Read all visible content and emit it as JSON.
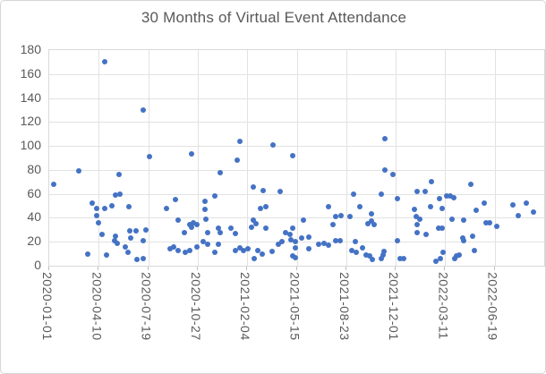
{
  "chart": {
    "title": "30 Months of Virtual Event Attendance",
    "colors": {
      "point": "#4472c4",
      "title_text": "#595959",
      "axis_text": "#595959",
      "gridline": "#e2e2e2",
      "plot_border": "#d9d9d9",
      "chart_border": "#d5d5d5",
      "background": "#ffffff"
    },
    "y_axis": {
      "ticks": [
        0,
        20,
        40,
        60,
        80,
        100,
        120,
        140,
        160,
        180
      ]
    },
    "x_axis": {
      "tick_labels": [
        "2020-01-01",
        "2020-04-10",
        "2020-07-19",
        "2020-10-27",
        "2021-02-04",
        "2021-05-15",
        "2021-08-23",
        "2021-12-01",
        "2022-03-11",
        "2022-06-19"
      ],
      "tick_interval_days": 100
    }
  },
  "chart_data": {
    "type": "scatter",
    "title": "30 Months of Virtual Event Attendance",
    "xlabel": "",
    "ylabel": "",
    "xlim": [
      "2020-01-01",
      "2022-09-27"
    ],
    "ylim": [
      0,
      180
    ],
    "grid": true,
    "legend": "none",
    "marker_color": "#4472c4",
    "points": [
      [
        "2020-01-10",
        68
      ],
      [
        "2020-03-01",
        79
      ],
      [
        "2020-03-18",
        10
      ],
      [
        "2020-03-28",
        52
      ],
      [
        "2020-04-05",
        42
      ],
      [
        "2020-04-06",
        48
      ],
      [
        "2020-04-10",
        36
      ],
      [
        "2020-04-17",
        26
      ],
      [
        "2020-04-22",
        48
      ],
      [
        "2020-04-23",
        170
      ],
      [
        "2020-04-25",
        9
      ],
      [
        "2020-05-07",
        50
      ],
      [
        "2020-05-12",
        21
      ],
      [
        "2020-05-14",
        59
      ],
      [
        "2020-05-14",
        25
      ],
      [
        "2020-05-18",
        19
      ],
      [
        "2020-05-21",
        76
      ],
      [
        "2020-05-22",
        60
      ],
      [
        "2020-06-02",
        16
      ],
      [
        "2020-06-09",
        11
      ],
      [
        "2020-06-10",
        49
      ],
      [
        "2020-06-12",
        29
      ],
      [
        "2020-06-13",
        23
      ],
      [
        "2020-06-24",
        29
      ],
      [
        "2020-06-27",
        5
      ],
      [
        "2020-07-08",
        130
      ],
      [
        "2020-07-08",
        6
      ],
      [
        "2020-07-09",
        21
      ],
      [
        "2020-07-15",
        30
      ],
      [
        "2020-07-22",
        91
      ],
      [
        "2020-08-25",
        48
      ],
      [
        "2020-09-02",
        14
      ],
      [
        "2020-09-09",
        16
      ],
      [
        "2020-09-12",
        55
      ],
      [
        "2020-09-17",
        38
      ],
      [
        "2020-09-17",
        13
      ],
      [
        "2020-09-30",
        28
      ],
      [
        "2020-10-02",
        11
      ],
      [
        "2020-10-11",
        34
      ],
      [
        "2020-10-11",
        13
      ],
      [
        "2020-10-14",
        93
      ],
      [
        "2020-10-14",
        32
      ],
      [
        "2020-10-18",
        36
      ],
      [
        "2020-10-25",
        16
      ],
      [
        "2020-10-26",
        34
      ],
      [
        "2020-11-07",
        20
      ],
      [
        "2020-11-10",
        54
      ],
      [
        "2020-11-10",
        47
      ],
      [
        "2020-11-12",
        39
      ],
      [
        "2020-11-16",
        28
      ],
      [
        "2020-11-16",
        18
      ],
      [
        "2020-12-01",
        58
      ],
      [
        "2020-12-01",
        11
      ],
      [
        "2020-12-07",
        18
      ],
      [
        "2020-12-08",
        31
      ],
      [
        "2020-12-11",
        28
      ],
      [
        "2020-12-12",
        78
      ],
      [
        "2021-01-02",
        31
      ],
      [
        "2021-01-11",
        27
      ],
      [
        "2021-01-11",
        13
      ],
      [
        "2021-01-14",
        88
      ],
      [
        "2021-01-20",
        15
      ],
      [
        "2021-01-21",
        104
      ],
      [
        "2021-01-28",
        13
      ],
      [
        "2021-02-06",
        14
      ],
      [
        "2021-02-13",
        32
      ],
      [
        "2021-02-17",
        66
      ],
      [
        "2021-02-17",
        38
      ],
      [
        "2021-02-18",
        6
      ],
      [
        "2021-02-22",
        35
      ],
      [
        "2021-02-26",
        13
      ],
      [
        "2021-03-03",
        48
      ],
      [
        "2021-03-07",
        10
      ],
      [
        "2021-03-09",
        63
      ],
      [
        "2021-03-13",
        49
      ],
      [
        "2021-03-13",
        31
      ],
      [
        "2021-03-27",
        12
      ],
      [
        "2021-03-28",
        101
      ],
      [
        "2021-04-08",
        18
      ],
      [
        "2021-04-11",
        62
      ],
      [
        "2021-04-15",
        20
      ],
      [
        "2021-04-22",
        28
      ],
      [
        "2021-05-01",
        26
      ],
      [
        "2021-05-04",
        22
      ],
      [
        "2021-05-07",
        92
      ],
      [
        "2021-05-07",
        31
      ],
      [
        "2021-05-07",
        8
      ],
      [
        "2021-05-13",
        20
      ],
      [
        "2021-05-13",
        15
      ],
      [
        "2021-05-13",
        7
      ],
      [
        "2021-05-25",
        23
      ],
      [
        "2021-05-28",
        38
      ],
      [
        "2021-06-09",
        24
      ],
      [
        "2021-06-09",
        14
      ],
      [
        "2021-06-29",
        18
      ],
      [
        "2021-07-09",
        19
      ],
      [
        "2021-07-19",
        49
      ],
      [
        "2021-07-19",
        17
      ],
      [
        "2021-07-27",
        34
      ],
      [
        "2021-08-01",
        21
      ],
      [
        "2021-08-02",
        41
      ],
      [
        "2021-08-10",
        21
      ],
      [
        "2021-08-12",
        42
      ],
      [
        "2021-08-30",
        41
      ],
      [
        "2021-09-04",
        13
      ],
      [
        "2021-09-07",
        60
      ],
      [
        "2021-09-10",
        20
      ],
      [
        "2021-09-13",
        11
      ],
      [
        "2021-09-19",
        49
      ],
      [
        "2021-09-25",
        15
      ],
      [
        "2021-10-02",
        9
      ],
      [
        "2021-10-06",
        35
      ],
      [
        "2021-10-10",
        8
      ],
      [
        "2021-10-13",
        43
      ],
      [
        "2021-10-13",
        37
      ],
      [
        "2021-10-15",
        5
      ],
      [
        "2021-10-19",
        34
      ],
      [
        "2021-11-01",
        60
      ],
      [
        "2021-11-01",
        6
      ],
      [
        "2021-11-06",
        9
      ],
      [
        "2021-11-08",
        12
      ],
      [
        "2021-11-10",
        106
      ],
      [
        "2021-11-10",
        80
      ],
      [
        "2021-11-25",
        76
      ],
      [
        "2021-12-04",
        56
      ],
      [
        "2021-12-04",
        21
      ],
      [
        "2021-12-09",
        6
      ],
      [
        "2021-12-17",
        6
      ],
      [
        "2022-01-07",
        47
      ],
      [
        "2022-01-11",
        41
      ],
      [
        "2022-01-13",
        28
      ],
      [
        "2022-01-14",
        62
      ],
      [
        "2022-01-14",
        34
      ],
      [
        "2022-01-19",
        39
      ],
      [
        "2022-01-30",
        62
      ],
      [
        "2022-01-31",
        26
      ],
      [
        "2022-02-09",
        49
      ],
      [
        "2022-02-12",
        70
      ],
      [
        "2022-02-21",
        4
      ],
      [
        "2022-02-25",
        31
      ],
      [
        "2022-02-27",
        56
      ],
      [
        "2022-03-01",
        6
      ],
      [
        "2022-03-04",
        48
      ],
      [
        "2022-03-04",
        31
      ],
      [
        "2022-03-07",
        11
      ],
      [
        "2022-03-13",
        58
      ],
      [
        "2022-03-22",
        58
      ],
      [
        "2022-03-24",
        39
      ],
      [
        "2022-03-29",
        57
      ],
      [
        "2022-03-31",
        6
      ],
      [
        "2022-04-02",
        8
      ],
      [
        "2022-04-08",
        9
      ],
      [
        "2022-04-16",
        23
      ],
      [
        "2022-04-18",
        38
      ],
      [
        "2022-04-18",
        21
      ],
      [
        "2022-05-02",
        68
      ],
      [
        "2022-05-06",
        25
      ],
      [
        "2022-05-09",
        13
      ],
      [
        "2022-05-13",
        46
      ],
      [
        "2022-05-28",
        52
      ],
      [
        "2022-06-02",
        36
      ],
      [
        "2022-06-08",
        36
      ],
      [
        "2022-06-23",
        33
      ],
      [
        "2022-07-26",
        51
      ],
      [
        "2022-08-05",
        42
      ],
      [
        "2022-08-22",
        52
      ],
      [
        "2022-09-05",
        45
      ]
    ]
  }
}
